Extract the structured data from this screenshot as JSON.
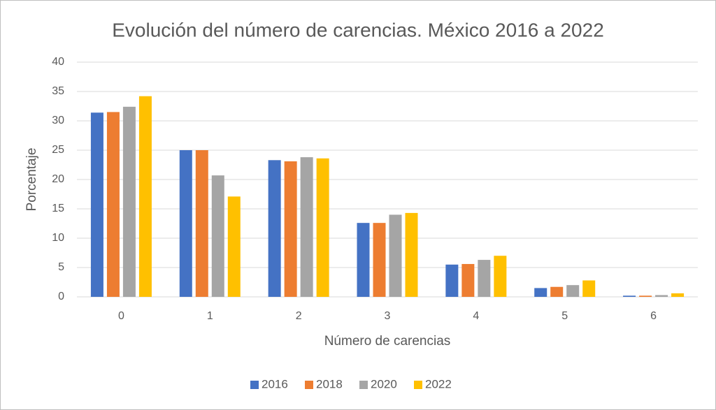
{
  "chart_data": {
    "type": "bar",
    "title": "Evolución del número de carencias. México 2016 a 2022",
    "x_label": "Número de carencias",
    "y_label": "Porcentaje",
    "categories": [
      "0",
      "1",
      "2",
      "3",
      "4",
      "5",
      "6"
    ],
    "series": [
      {
        "name": "2016",
        "color": "#4472c4",
        "values": [
          31.4,
          25.0,
          23.3,
          12.6,
          5.5,
          1.5,
          0.2
        ]
      },
      {
        "name": "2018",
        "color": "#ed7d31",
        "values": [
          31.5,
          25.0,
          23.1,
          12.6,
          5.6,
          1.7,
          0.2
        ]
      },
      {
        "name": "2020",
        "color": "#a5a5a5",
        "values": [
          32.4,
          20.7,
          23.8,
          14.0,
          6.3,
          2.0,
          0.3
        ]
      },
      {
        "name": "2022",
        "color": "#ffc000",
        "values": [
          34.2,
          17.1,
          23.6,
          14.3,
          7.0,
          2.8,
          0.6
        ]
      }
    ],
    "ylim": [
      0,
      40
    ],
    "yticks": [
      0,
      5,
      10,
      15,
      20,
      25,
      30,
      35,
      40
    ],
    "grid": true,
    "legend": "bottom"
  }
}
